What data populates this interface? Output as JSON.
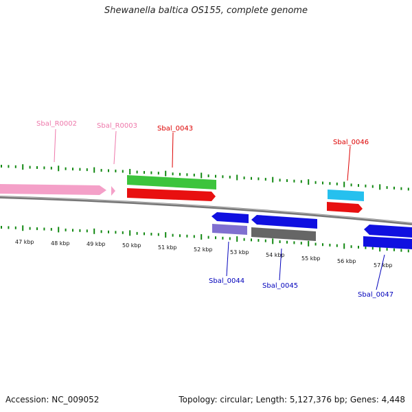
{
  "title": "Shewanella baltica OS155, complete genome",
  "accession": "Accession: NC_009052",
  "summary": "Topology: circular; Length: 5,127,376 bp; Genes: 4,448",
  "colors": {
    "pink": "#f4a0c8",
    "green": "#3cc43c",
    "red": "#e81010",
    "cyan": "#26c0ee",
    "blue": "#1010e0",
    "lavender": "#8070d0",
    "gray": "#666666",
    "tick": "#118811",
    "backbone": "#777777",
    "label_pink": "#ee77aa",
    "label_red": "#dd0000",
    "label_blue": "#0000bb"
  },
  "kbp_labels": [
    "47 kbp",
    "48 kbp",
    "49 kbp",
    "50 kbp",
    "51 kbp",
    "52 kbp",
    "53 kbp",
    "54 kbp",
    "55 kbp",
    "56 kbp",
    "57 kbp"
  ],
  "gene_labels": [
    {
      "id": "Sbal_R0002",
      "color": "label_pink"
    },
    {
      "id": "Sbal_R0003",
      "color": "label_pink"
    },
    {
      "id": "Sbal_0043",
      "color": "label_red"
    },
    {
      "id": "Sbal_0046",
      "color": "label_red"
    },
    {
      "id": "Sbal_0044",
      "color": "label_blue"
    },
    {
      "id": "Sbal_0045",
      "color": "label_blue"
    },
    {
      "id": "Sbal_0047",
      "color": "label_blue"
    }
  ]
}
